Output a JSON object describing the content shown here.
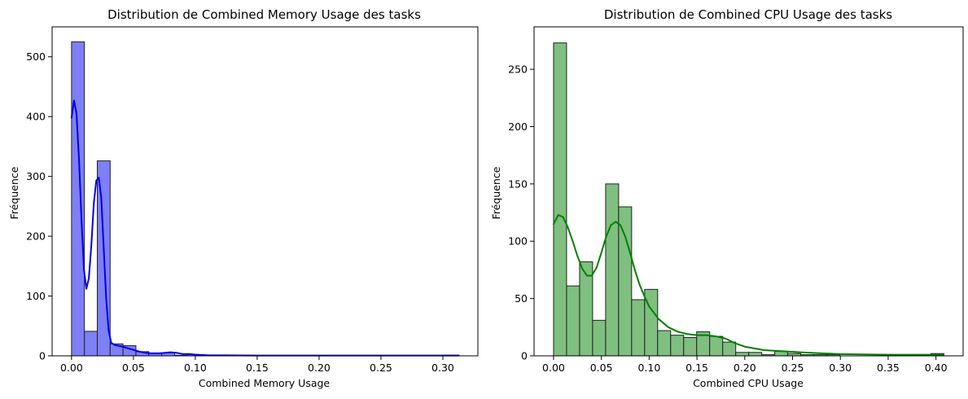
{
  "chart_data": [
    {
      "type": "histogram",
      "title": "Distribution de Combined Memory Usage des tasks",
      "xlabel": "Combined Memory Usage",
      "ylabel": "Fréquence",
      "xlim": [
        -0.0157,
        0.3283
      ],
      "ylim": [
        0,
        550
      ],
      "xticks": [
        0.0,
        0.05,
        0.1,
        0.15,
        0.2,
        0.25,
        0.3
      ],
      "xtick_labels": [
        "0.00",
        "0.05",
        "0.10",
        "0.15",
        "0.20",
        "0.25",
        "0.30"
      ],
      "yticks": [
        0,
        100,
        200,
        300,
        400,
        500
      ],
      "ytick_labels": [
        "0",
        "100",
        "200",
        "300",
        "400",
        "500"
      ],
      "grid": false,
      "colors": {
        "fill": "#7f7ff6",
        "edge": "#222222",
        "kde": "#0000ee"
      },
      "bins": {
        "start": 0.0,
        "width": 0.0104,
        "counts": [
          525,
          41,
          326,
          20,
          17,
          7,
          5,
          5,
          1,
          2,
          0,
          0,
          0,
          0,
          0,
          0,
          0,
          0,
          0,
          0,
          0,
          0,
          0,
          0,
          0,
          0,
          0,
          0,
          0,
          1
        ]
      },
      "kde": {
        "x": [
          0.0,
          0.002,
          0.004,
          0.006,
          0.008,
          0.01,
          0.012,
          0.014,
          0.016,
          0.018,
          0.02,
          0.022,
          0.024,
          0.026,
          0.028,
          0.03,
          0.032,
          0.035,
          0.04,
          0.045,
          0.05,
          0.055,
          0.06,
          0.065,
          0.07,
          0.075,
          0.08,
          0.085,
          0.09,
          0.095,
          0.1,
          0.11,
          0.15,
          0.2,
          0.25,
          0.3,
          0.313
        ],
        "y": [
          398,
          427,
          405,
          330,
          230,
          145,
          112,
          130,
          185,
          255,
          293,
          298,
          265,
          180,
          95,
          42,
          22,
          18,
          16,
          13,
          10,
          7,
          5,
          4,
          4,
          5,
          6,
          5,
          3,
          3,
          2,
          1,
          0.5,
          0.5,
          0.5,
          0.5,
          0.5
        ]
      }
    },
    {
      "type": "histogram",
      "title": "Distribution de Combined CPU Usage des tasks",
      "xlabel": "Combined CPU Usage",
      "ylabel": "Fréquence",
      "xlim": [
        -0.0204,
        0.4284
      ],
      "ylim": [
        0,
        287
      ],
      "xticks": [
        0.0,
        0.05,
        0.1,
        0.15,
        0.2,
        0.25,
        0.3,
        0.35,
        0.4
      ],
      "xtick_labels": [
        "0.00",
        "0.05",
        "0.10",
        "0.15",
        "0.20",
        "0.25",
        "0.30",
        "0.35",
        "0.40"
      ],
      "yticks": [
        0,
        50,
        100,
        150,
        200,
        250
      ],
      "ytick_labels": [
        "0",
        "50",
        "100",
        "150",
        "200",
        "250"
      ],
      "grid": false,
      "colors": {
        "fill": "#7fbf7f",
        "edge": "#222222",
        "kde": "#008000"
      },
      "bins": {
        "start": 0.0,
        "width": 0.01361,
        "counts": [
          273,
          61,
          82,
          31,
          150,
          130,
          49,
          58,
          22,
          18,
          16,
          21,
          17,
          12,
          3,
          3,
          1,
          4,
          2,
          1,
          1,
          1,
          0,
          0,
          0,
          0,
          0,
          0,
          0,
          2
        ]
      },
      "kde": {
        "x": [
          0.0,
          0.005,
          0.01,
          0.015,
          0.02,
          0.025,
          0.03,
          0.035,
          0.04,
          0.045,
          0.05,
          0.055,
          0.06,
          0.065,
          0.07,
          0.075,
          0.08,
          0.085,
          0.09,
          0.095,
          0.1,
          0.11,
          0.12,
          0.13,
          0.14,
          0.15,
          0.16,
          0.17,
          0.18,
          0.19,
          0.2,
          0.22,
          0.24,
          0.26,
          0.3,
          0.35,
          0.4,
          0.408
        ],
        "y": [
          115,
          123,
          121,
          112,
          100,
          87,
          76,
          70,
          70,
          77,
          90,
          104,
          114,
          117,
          114,
          104,
          90,
          75,
          62,
          52,
          43,
          32,
          25,
          21,
          19,
          18,
          18,
          17,
          15,
          11,
          8,
          5,
          4,
          3,
          1.5,
          1,
          1,
          1
        ]
      }
    }
  ]
}
